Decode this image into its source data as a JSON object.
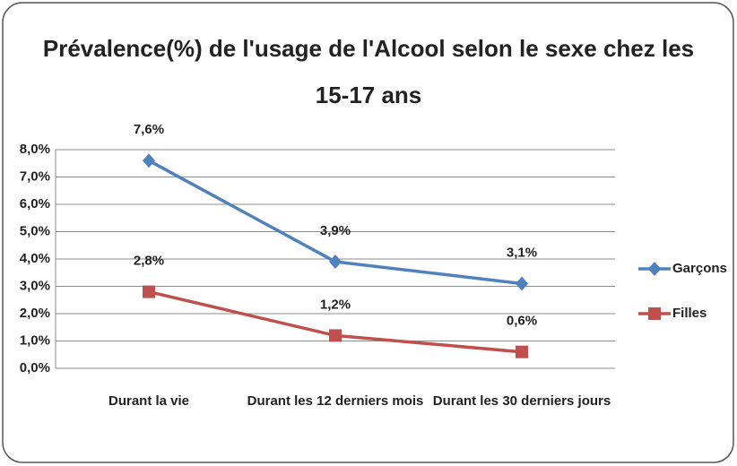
{
  "chart_data": {
    "type": "line",
    "title": "Prévalence(%) de l'usage de l'Alcool selon le sexe chez les 15-17 ans",
    "categories": [
      "Durant la vie",
      "Durant les 12 derniers mois",
      "Durant les 30 derniers jours"
    ],
    "series": [
      {
        "name": "Garçons",
        "color": "#4f81bd",
        "marker": "diamond",
        "values": [
          7.6,
          3.9,
          3.1
        ],
        "value_labels": [
          "7,6%",
          "3,9%",
          "3,1%"
        ]
      },
      {
        "name": "Filles",
        "color": "#c0504d",
        "marker": "square",
        "values": [
          2.8,
          1.2,
          0.6
        ],
        "value_labels": [
          "2,8%",
          "1,2%",
          "0,6%"
        ]
      }
    ],
    "ylim": [
      0,
      8
    ],
    "yticks": [
      {
        "value": 0,
        "label": "0,0%"
      },
      {
        "value": 1,
        "label": "1,0%"
      },
      {
        "value": 2,
        "label": "2,0%"
      },
      {
        "value": 3,
        "label": "3,0%"
      },
      {
        "value": 4,
        "label": "4,0%"
      },
      {
        "value": 5,
        "label": "5,0%"
      },
      {
        "value": 6,
        "label": "6,0%"
      },
      {
        "value": 7,
        "label": "7,0%"
      },
      {
        "value": 8,
        "label": "8,0%"
      }
    ],
    "grid": true,
    "legend": "right"
  }
}
